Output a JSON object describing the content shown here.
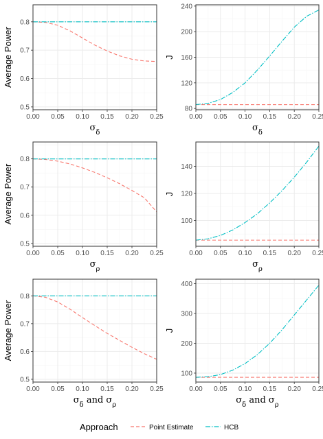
{
  "colors": {
    "point_estimate": "#F8766D",
    "hcb": "#00BFC4",
    "grid_major": "#EBEBEB",
    "grid_minor": "#F5F5F5",
    "panel_border": "#333333"
  },
  "legend": {
    "title": "Approach",
    "items": [
      {
        "label": "Point Estimate",
        "color": "#F8766D",
        "dash": "dashed"
      },
      {
        "label": "HCB",
        "color": "#00BFC4",
        "dash": "dotdash"
      }
    ]
  },
  "chart_data": [
    {
      "type": "line",
      "ylabel": "Average Power",
      "xlabel": "σδ",
      "xlim": [
        0,
        0.25
      ],
      "ylim": [
        0.49,
        0.86
      ],
      "xticks": [
        "0.00",
        "0.05",
        "0.10",
        "0.15",
        "0.20",
        "0.25"
      ],
      "yticks": [
        "0.5",
        "0.6",
        "0.7",
        "0.8"
      ],
      "x": [
        0,
        0.025,
        0.05,
        0.075,
        0.1,
        0.125,
        0.15,
        0.175,
        0.2,
        0.225,
        0.25
      ],
      "series": [
        {
          "name": "Point Estimate",
          "values": [
            0.8,
            0.798,
            0.788,
            0.768,
            0.743,
            0.718,
            0.697,
            0.68,
            0.668,
            0.662,
            0.66
          ]
        },
        {
          "name": "HCB",
          "values": [
            0.8,
            0.8,
            0.8,
            0.8,
            0.8,
            0.8,
            0.8,
            0.8,
            0.8,
            0.8,
            0.8
          ]
        }
      ],
      "grid": true
    },
    {
      "type": "line",
      "ylabel": "J",
      "xlabel": "σδ",
      "xlim": [
        0,
        0.25
      ],
      "ylim": [
        78,
        242
      ],
      "xticks": [
        "0.00",
        "0.05",
        "0.10",
        "0.15",
        "0.20",
        "0.25"
      ],
      "yticks": [
        "80",
        "120",
        "160",
        "200",
        "240"
      ],
      "x": [
        0,
        0.025,
        0.05,
        0.075,
        0.1,
        0.125,
        0.15,
        0.175,
        0.2,
        0.225,
        0.25
      ],
      "series": [
        {
          "name": "Point Estimate",
          "values": [
            86,
            86,
            86,
            86,
            86,
            86,
            86,
            86,
            86,
            86,
            86
          ]
        },
        {
          "name": "HCB",
          "values": [
            86,
            88,
            94,
            105,
            120,
            140,
            162,
            185,
            207,
            224,
            234
          ]
        }
      ],
      "grid": true
    },
    {
      "type": "line",
      "ylabel": "Average Power",
      "xlabel": "σρ",
      "xlim": [
        0,
        0.25
      ],
      "ylim": [
        0.49,
        0.86
      ],
      "xticks": [
        "0.00",
        "0.05",
        "0.10",
        "0.15",
        "0.20",
        "0.25"
      ],
      "yticks": [
        "0.5",
        "0.6",
        "0.7",
        "0.8"
      ],
      "x": [
        0,
        0.025,
        0.05,
        0.075,
        0.1,
        0.125,
        0.15,
        0.175,
        0.2,
        0.225,
        0.25
      ],
      "series": [
        {
          "name": "Point Estimate",
          "values": [
            0.8,
            0.798,
            0.792,
            0.782,
            0.768,
            0.752,
            0.733,
            0.712,
            0.688,
            0.662,
            0.612
          ]
        },
        {
          "name": "HCB",
          "values": [
            0.8,
            0.8,
            0.8,
            0.8,
            0.8,
            0.8,
            0.8,
            0.8,
            0.8,
            0.8,
            0.8
          ]
        }
      ],
      "grid": true
    },
    {
      "type": "line",
      "ylabel": "J",
      "xlabel": "σρ",
      "xlim": [
        0,
        0.25
      ],
      "ylim": [
        81,
        158
      ],
      "xticks": [
        "0.00",
        "0.05",
        "0.10",
        "0.15",
        "0.20",
        "0.25"
      ],
      "yticks": [
        "100",
        "120",
        "140"
      ],
      "x": [
        0,
        0.025,
        0.05,
        0.075,
        0.1,
        0.125,
        0.15,
        0.175,
        0.2,
        0.225,
        0.25
      ],
      "series": [
        {
          "name": "Point Estimate",
          "values": [
            85.5,
            85.5,
            85.5,
            85.5,
            85.5,
            85.5,
            85.5,
            85.5,
            85.5,
            85.5,
            85.5
          ]
        },
        {
          "name": "HCB",
          "values": [
            85.5,
            86.5,
            89,
            93,
            98.5,
            105,
            113,
            122,
            132,
            143,
            155
          ]
        }
      ],
      "grid": true
    },
    {
      "type": "line",
      "ylabel": "Average Power",
      "xlabel": "σδ and σρ",
      "xlim": [
        0,
        0.25
      ],
      "ylim": [
        0.49,
        0.86
      ],
      "xticks": [
        "0.00",
        "0.05",
        "0.10",
        "0.15",
        "0.20",
        "0.25"
      ],
      "yticks": [
        "0.5",
        "0.6",
        "0.7",
        "0.8"
      ],
      "x": [
        0,
        0.025,
        0.05,
        0.075,
        0.1,
        0.125,
        0.15,
        0.175,
        0.2,
        0.225,
        0.25
      ],
      "series": [
        {
          "name": "Point Estimate",
          "values": [
            0.8,
            0.795,
            0.778,
            0.752,
            0.722,
            0.693,
            0.665,
            0.64,
            0.615,
            0.592,
            0.572
          ]
        },
        {
          "name": "HCB",
          "values": [
            0.8,
            0.8,
            0.8,
            0.8,
            0.8,
            0.8,
            0.8,
            0.8,
            0.8,
            0.8,
            0.8
          ]
        }
      ],
      "grid": true
    },
    {
      "type": "line",
      "ylabel": "J",
      "xlabel": "σδ and σρ",
      "xlim": [
        0,
        0.25
      ],
      "ylim": [
        70,
        415
      ],
      "xticks": [
        "0.00",
        "0.05",
        "0.10",
        "0.15",
        "0.20",
        "0.25"
      ],
      "yticks": [
        "100",
        "200",
        "300",
        "400"
      ],
      "x": [
        0,
        0.025,
        0.05,
        0.075,
        0.1,
        0.125,
        0.15,
        0.175,
        0.2,
        0.225,
        0.25
      ],
      "series": [
        {
          "name": "Point Estimate",
          "values": [
            86,
            86,
            86,
            86,
            86,
            86,
            86,
            86,
            86,
            86,
            86
          ]
        },
        {
          "name": "HCB",
          "values": [
            86,
            88,
            95,
            110,
            132,
            162,
            200,
            245,
            295,
            345,
            395
          ]
        }
      ],
      "grid": true
    }
  ]
}
